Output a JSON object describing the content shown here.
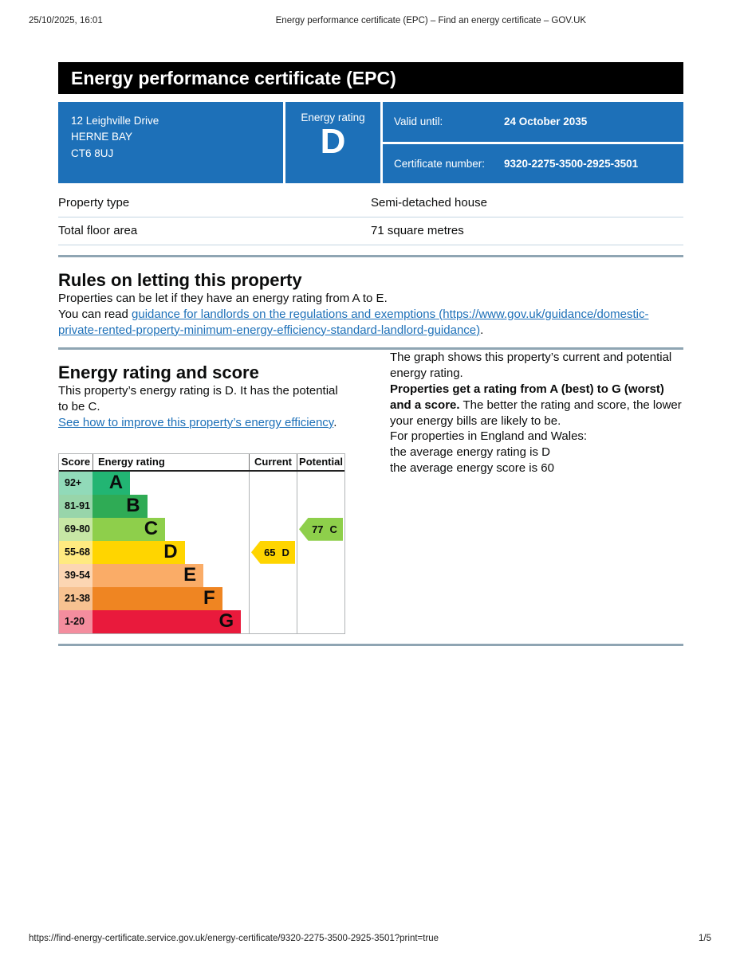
{
  "print_header": {
    "datetime": "25/10/2025, 16:01",
    "title": "Energy performance certificate (EPC) – Find an energy certificate – GOV.UK"
  },
  "print_footer": {
    "url": "https://find-energy-certificate.service.gov.uk/energy-certificate/9320-2275-3500-2925-3501?print=true",
    "page": "1/5"
  },
  "banner": {
    "title": "Energy performance certificate (EPC)"
  },
  "colors": {
    "brand_blue": "#1d70b8",
    "banner_bg": "#000000",
    "section_rule": "#8fa5b3"
  },
  "summary": {
    "address_lines": [
      "12 Leighville Drive",
      "HERNE BAY",
      "CT6 8UJ"
    ],
    "rating_label": "Energy rating",
    "rating": "D",
    "valid_until_label": "Valid until:",
    "valid_until": "24 October 2035",
    "certificate_number_label": "Certificate number:",
    "certificate_number": "9320-2275-3500-2925-3501"
  },
  "property_table": {
    "rows": [
      {
        "label": "Property type",
        "value": "Semi-detached house"
      },
      {
        "label": "Total floor area",
        "value": "71 square metres"
      }
    ]
  },
  "rules_section": {
    "heading": "Rules on letting this property",
    "para1": "Properties can be let if they have an energy rating from A to E.",
    "para2_prefix": "You can read ",
    "link_text": "guidance for landlords on the regulations and exemptions",
    "link_url": "(https://www.gov.uk/guidance/domestic-private-rented-property-minimum-energy-efficiency-standard-landlord-guidance)",
    "para2_suffix": "."
  },
  "rating_section": {
    "heading": "Energy rating and score",
    "para1": "This property’s energy rating is D. It has the potential to be C.",
    "improve_link": "See how to improve this property’s energy efficiency",
    "improve_suffix": ".",
    "right_para1": "The graph shows this property’s current and potential energy rating.",
    "right_para2_bold": "Properties get a rating from A (best) to G (worst) and a score.",
    "right_para2_rest": " The better the rating and score, the lower your energy bills are likely to be.",
    "right_para3": "For properties in England and Wales:",
    "right_para4_line1": "the average energy rating is D",
    "right_para4_line2": "the average energy score is 60"
  },
  "chart_data": {
    "type": "bar",
    "title": "Energy rating and score graph",
    "columns": [
      "Score",
      "Energy rating",
      "Current",
      "Potential"
    ],
    "bands": [
      {
        "range": "92+",
        "letter": "A",
        "color": "#22b573",
        "tint": "#91dab9",
        "width_pct": 24
      },
      {
        "range": "81-91",
        "letter": "B",
        "color": "#2fab55",
        "tint": "#98d5aa",
        "width_pct": 35
      },
      {
        "range": "69-80",
        "letter": "C",
        "color": "#8ecf4b",
        "tint": "#c7e7a5",
        "width_pct": 46.5
      },
      {
        "range": "55-68",
        "letter": "D",
        "color": "#ffd500",
        "tint": "#ffea80",
        "width_pct": 59
      },
      {
        "range": "39-54",
        "letter": "E",
        "color": "#faac67",
        "tint": "#fcd6b3",
        "width_pct": 71
      },
      {
        "range": "21-38",
        "letter": "F",
        "color": "#ef8522",
        "tint": "#f7c291",
        "width_pct": 83
      },
      {
        "range": "1-20",
        "letter": "G",
        "color": "#e91a3c",
        "tint": "#f48d9e",
        "width_pct": 95
      }
    ],
    "current": {
      "score": "65",
      "band": "D",
      "row": 3,
      "color": "#ffd500"
    },
    "potential": {
      "score": "77",
      "band": "C",
      "row": 2,
      "color": "#8ecf4b"
    }
  }
}
